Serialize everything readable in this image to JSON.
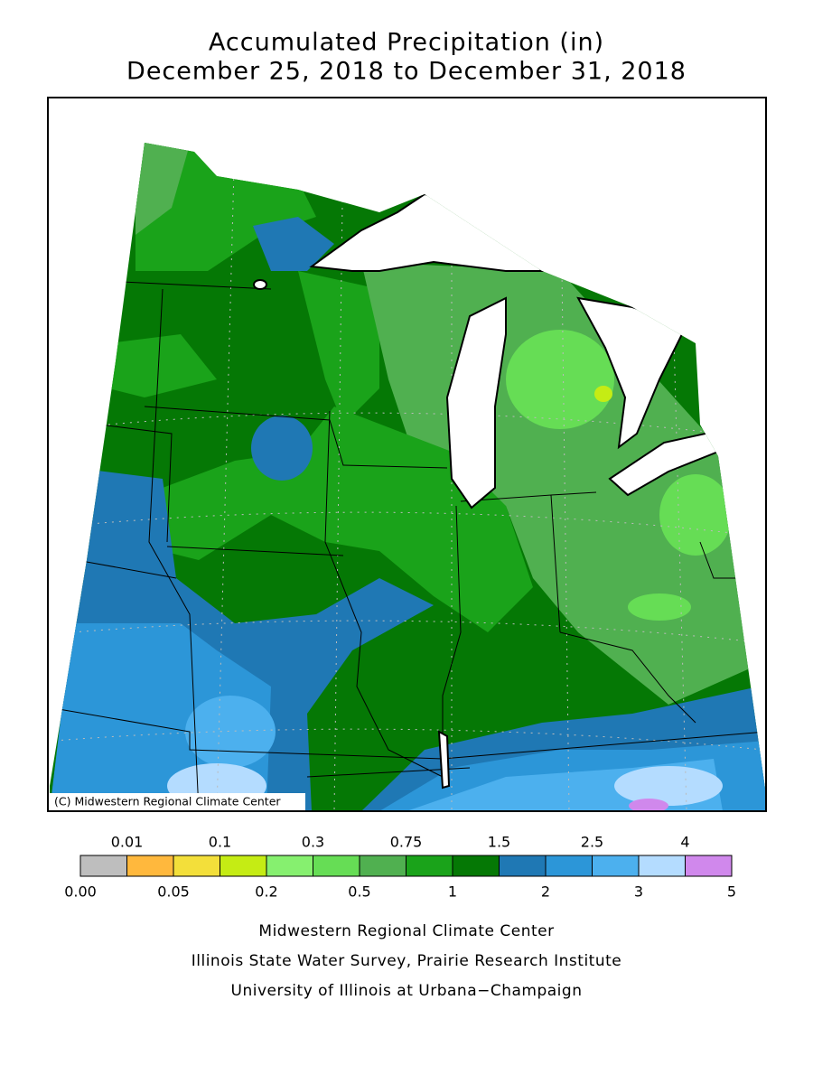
{
  "title": [
    "Accumulated Precipitation (in)",
    "December 25, 2018 to December 31, 2018"
  ],
  "map": {
    "copyright": "(C) Midwestern Regional Climate Center"
  },
  "legend": {
    "labels": [
      "0.00",
      "0.01",
      "0.05",
      "0.1",
      "0.2",
      "0.3",
      "0.5",
      "0.75",
      "1",
      "1.5",
      "2",
      "2.5",
      "3",
      "4",
      "5"
    ],
    "colors": [
      "#bebebe",
      "#ffb83d",
      "#f3df3a",
      "#c5ec14",
      "#86f06f",
      "#66dd55",
      "#50b050",
      "#1aa31a",
      "#057805",
      "#1f78b4",
      "#2c96d8",
      "#4cb0ee",
      "#b4dcff",
      "#d088ec"
    ]
  },
  "credits": [
    "Midwestern Regional Climate Center",
    "Illinois State Water Survey, Prairie Research Institute",
    "University of Illinois at Urbana−Champaign"
  ]
}
